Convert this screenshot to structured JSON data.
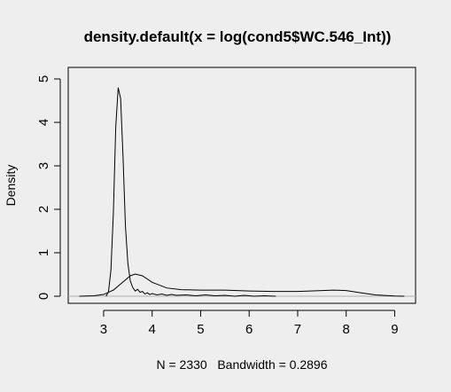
{
  "chart_data": {
    "type": "line",
    "title": "density.default(x = log(cond5$WC.546_Int))",
    "xlabel": "N = 2330   Bandwidth = 0.2896",
    "ylabel": "Density",
    "xlim": [
      2.27,
      9.43
    ],
    "ylim": [
      0,
      5.0
    ],
    "x_ticks": [
      3,
      4,
      5,
      6,
      7,
      8,
      9
    ],
    "y_ticks": [
      0,
      1,
      2,
      3,
      4,
      5
    ],
    "grid": false,
    "baseline_y": 0,
    "series": [
      {
        "points": [
          [
            3.05,
            0.0
          ],
          [
            3.1,
            0.1
          ],
          [
            3.15,
            0.6
          ],
          [
            3.2,
            1.9
          ],
          [
            3.25,
            3.9
          ],
          [
            3.3,
            4.8
          ],
          [
            3.35,
            4.55
          ],
          [
            3.4,
            3.2
          ],
          [
            3.45,
            1.6
          ],
          [
            3.5,
            0.75
          ],
          [
            3.55,
            0.35
          ],
          [
            3.6,
            0.2
          ],
          [
            3.65,
            0.12
          ],
          [
            3.7,
            0.16
          ],
          [
            3.75,
            0.09
          ],
          [
            3.8,
            0.11
          ],
          [
            3.85,
            0.05
          ],
          [
            3.9,
            0.08
          ],
          [
            3.95,
            0.04
          ],
          [
            4.0,
            0.06
          ],
          [
            4.1,
            0.03
          ],
          [
            4.2,
            0.05
          ],
          [
            4.3,
            0.02
          ],
          [
            4.4,
            0.04
          ],
          [
            4.5,
            0.02
          ],
          [
            4.7,
            0.03
          ],
          [
            4.9,
            0.01
          ],
          [
            5.1,
            0.03
          ],
          [
            5.3,
            0.01
          ],
          [
            5.5,
            0.02
          ],
          [
            5.7,
            0.0
          ],
          [
            5.9,
            0.02
          ],
          [
            6.1,
            0.0
          ],
          [
            6.3,
            0.01
          ],
          [
            6.55,
            0.0
          ]
        ]
      },
      {
        "points": [
          [
            2.5,
            0.0
          ],
          [
            2.8,
            0.01
          ],
          [
            3.0,
            0.04
          ],
          [
            3.2,
            0.14
          ],
          [
            3.4,
            0.33
          ],
          [
            3.55,
            0.47
          ],
          [
            3.65,
            0.51
          ],
          [
            3.8,
            0.47
          ],
          [
            4.0,
            0.32
          ],
          [
            4.3,
            0.19
          ],
          [
            4.6,
            0.15
          ],
          [
            5.0,
            0.14
          ],
          [
            5.5,
            0.14
          ],
          [
            6.0,
            0.12
          ],
          [
            6.5,
            0.11
          ],
          [
            7.0,
            0.11
          ],
          [
            7.5,
            0.13
          ],
          [
            7.75,
            0.14
          ],
          [
            8.0,
            0.13
          ],
          [
            8.3,
            0.08
          ],
          [
            8.6,
            0.03
          ],
          [
            9.0,
            0.005
          ],
          [
            9.2,
            0.0
          ]
        ]
      }
    ]
  }
}
